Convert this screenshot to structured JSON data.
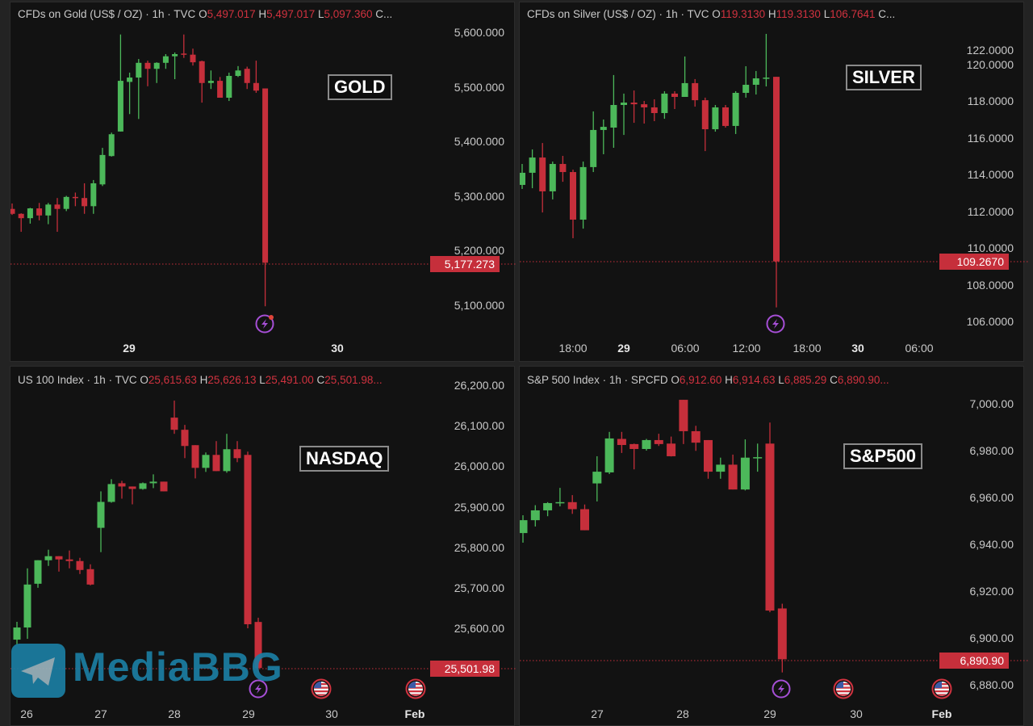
{
  "colors": {
    "up": "#4cb85a",
    "down": "#c62f3b",
    "background": "#121212",
    "text": "#c9c9c9",
    "event_icon": "#a64fd6",
    "watermark": "#1b7ea3"
  },
  "watermark": "MediaBBG",
  "chart_data": [
    {
      "type": "candlestick",
      "interval": "1h",
      "title": "CFDs on Gold (US$ / OZ) · 1h · TVC",
      "legend": {
        "O": "5,497.017",
        "H": "5,497.017",
        "L": "5,097.360",
        "C": "C..."
      },
      "annotation": "GOLD",
      "last_price": "5,177.273",
      "y_ticks": [
        "5,600.000",
        "5,500.000",
        "5,400.000",
        "5,300.000",
        "5,200.000",
        "5,100.000"
      ],
      "y_tick_values": [
        5600,
        5500,
        5400,
        5300,
        5200,
        5100
      ],
      "x_ticks": [
        "29",
        "30"
      ],
      "events": [
        "lightning"
      ],
      "ohlc": [
        [
          5276,
          5286,
          5265,
          5267
        ],
        [
          5267,
          5268,
          5234,
          5259
        ],
        [
          5259,
          5278,
          5249,
          5277
        ],
        [
          5277,
          5287,
          5255,
          5264
        ],
        [
          5264,
          5287,
          5248,
          5284
        ],
        [
          5284,
          5296,
          5234,
          5276
        ],
        [
          5276,
          5300,
          5272,
          5298
        ],
        [
          5298,
          5306,
          5281,
          5296
        ],
        [
          5296,
          5323,
          5267,
          5281
        ],
        [
          5281,
          5329,
          5267,
          5323
        ],
        [
          5321,
          5388,
          5318,
          5375
        ],
        [
          5373,
          5416,
          5372,
          5413
        ],
        [
          5418,
          5596,
          5418,
          5511
        ],
        [
          5509,
          5526,
          5450,
          5517
        ],
        [
          5517,
          5551,
          5441,
          5544
        ],
        [
          5544,
          5548,
          5501,
          5533
        ],
        [
          5533,
          5545,
          5507,
          5544
        ],
        [
          5544,
          5560,
          5533,
          5556
        ],
        [
          5556,
          5563,
          5514,
          5560
        ],
        [
          5561,
          5596,
          5553,
          5559
        ],
        [
          5559,
          5570,
          5539,
          5545
        ],
        [
          5547,
          5548,
          5471,
          5507
        ],
        [
          5507,
          5530,
          5496,
          5511
        ],
        [
          5511,
          5518,
          5480,
          5480
        ],
        [
          5480,
          5526,
          5474,
          5520
        ],
        [
          5520,
          5538,
          5518,
          5530
        ],
        [
          5533,
          5537,
          5496,
          5507
        ],
        [
          5507,
          5548,
          5489,
          5493
        ],
        [
          5497.017,
          5497.017,
          5097.36,
          5177.273
        ]
      ]
    },
    {
      "type": "candlestick",
      "interval": "1h",
      "title": "CFDs on Silver (US$ / OZ) · 1h · TVC",
      "legend": {
        "O": "119.3130",
        "H": "119.3130",
        "L": "106.7641",
        "C": "C..."
      },
      "annotation": "SILVER",
      "last_price": "109.2670",
      "y_ticks": [
        "122.0000",
        "120.0000",
        "118.0000",
        "116.0000",
        "114.0000",
        "112.0000",
        "110.0000",
        "108.0000",
        "106.0000"
      ],
      "y_tick_values": [
        122,
        120,
        118,
        116,
        114,
        112,
        110,
        108,
        106
      ],
      "x_ticks": [
        "18:00",
        "29",
        "06:00",
        "12:00",
        "18:00",
        "30",
        "06:00"
      ],
      "events": [
        "lightning"
      ],
      "ohlc": [
        [
          113.43,
          114.57,
          113.21,
          114.09
        ],
        [
          114.09,
          115.36,
          113.25,
          114.92
        ],
        [
          114.92,
          115.71,
          111.93,
          113.08
        ],
        [
          113.08,
          114.7,
          112.64,
          114.57
        ],
        [
          114.57,
          115.01,
          113.6,
          114.13
        ],
        [
          114.13,
          114.26,
          110.53,
          111.54
        ],
        [
          111.54,
          114.7,
          111.05,
          114.4
        ],
        [
          114.4,
          117.43,
          114.13,
          116.42
        ],
        [
          116.42,
          116.99,
          115.1,
          116.59
        ],
        [
          116.55,
          119.41,
          115.45,
          117.78
        ],
        [
          117.78,
          118.4,
          116.15,
          117.91
        ],
        [
          117.91,
          118.57,
          116.81,
          117.82
        ],
        [
          117.82,
          118.0,
          116.77,
          117.65
        ],
        [
          117.65,
          118.09,
          116.9,
          117.34
        ],
        [
          117.34,
          118.53,
          117.03,
          118.4
        ],
        [
          118.4,
          118.53,
          117.56,
          118.22
        ],
        [
          118.22,
          120.42,
          118.22,
          118.97
        ],
        [
          118.97,
          119.19,
          117.69,
          118.04
        ],
        [
          118.04,
          118.18,
          115.27,
          116.46
        ],
        [
          116.46,
          117.78,
          116.33,
          117.65
        ],
        [
          117.65,
          117.78,
          116.55,
          116.64
        ],
        [
          116.64,
          118.53,
          116.2,
          118.44
        ],
        [
          118.44,
          119.89,
          118.18,
          118.88
        ],
        [
          118.88,
          119.63,
          118.35,
          119.23
        ],
        [
          119.23,
          121.65,
          118.79,
          119.27
        ],
        [
          119.313,
          119.313,
          106.7641,
          109.267
        ]
      ]
    },
    {
      "type": "candlestick",
      "interval": "1h",
      "title": "US 100 Index · 1h · TVC",
      "legend": {
        "O": "25,615.63",
        "H": "25,626.13",
        "L": "25,491.00",
        "C": "25,501.98..."
      },
      "annotation": "NASDAQ",
      "last_price": "25,501.98",
      "y_ticks": [
        "26,200.00",
        "26,100.00",
        "26,000.00",
        "25,900.00",
        "25,800.00",
        "25,700.00",
        "25,600.00"
      ],
      "y_tick_values": [
        26200,
        26100,
        26000,
        25900,
        25800,
        25700,
        25600
      ],
      "x_ticks": [
        "26",
        "27",
        "28",
        "29",
        "30",
        "Feb"
      ],
      "events": [
        "lightning",
        "us-flag",
        "us-flag"
      ],
      "ohlc": [
        [
          25572,
          25616,
          25560,
          25602
        ],
        [
          25602,
          25748,
          25574,
          25708
        ],
        [
          25710,
          25768,
          25700,
          25768
        ],
        [
          25768,
          25794,
          25754,
          25778
        ],
        [
          25778,
          25778,
          25740,
          25770
        ],
        [
          25770,
          25792,
          25748,
          25766
        ],
        [
          25766,
          25774,
          25734,
          25744
        ],
        [
          25746,
          25758,
          25706,
          25708
        ],
        [
          25848,
          25938,
          25788,
          25912
        ],
        [
          25912,
          25968,
          25910,
          25956
        ],
        [
          25958,
          25964,
          25920,
          25950
        ],
        [
          25950,
          25950,
          25906,
          25944
        ],
        [
          25944,
          25960,
          25942,
          25958
        ],
        [
          25958,
          25980,
          25946,
          25962
        ],
        [
          25962,
          25962,
          25938,
          25938
        ],
        [
          26120,
          26162,
          26080,
          26090
        ],
        [
          26090,
          26102,
          26020,
          26050
        ],
        [
          26052,
          26052,
          25970,
          25996
        ],
        [
          25996,
          26034,
          25986,
          26028
        ],
        [
          26028,
          26062,
          25988,
          25988
        ],
        [
          25988,
          26080,
          25984,
          26042
        ],
        [
          26042,
          26062,
          26010,
          26020
        ],
        [
          26028,
          26036,
          25600,
          25610
        ],
        [
          25615.63,
          25626.13,
          25491.0,
          25501.98
        ]
      ]
    },
    {
      "type": "candlestick",
      "interval": "1h",
      "title": "S&P 500 Index · 1h · SPCFD",
      "legend": {
        "O": "6,912.60",
        "H": "6,914.63",
        "L": "6,885.29",
        "C": "6,890.90..."
      },
      "annotation": "S&P500",
      "last_price": "6,890.90",
      "y_ticks": [
        "7,000.00",
        "6,980.00",
        "6,960.00",
        "6,940.00",
        "6,920.00",
        "6,900.00",
        "6,880.00"
      ],
      "y_tick_values": [
        7000,
        6980,
        6960,
        6940,
        6920,
        6900,
        6880
      ],
      "x_ticks": [
        "27",
        "28",
        "29",
        "30",
        "Feb"
      ],
      "events": [
        "lightning",
        "us-flag",
        "us-flag"
      ],
      "ohlc": [
        [
          6944.8,
          6952.4,
          6940.7,
          6950.3
        ],
        [
          6950.3,
          6956.7,
          6947.6,
          6954.5
        ],
        [
          6954.5,
          6958,
          6952,
          6957.6
        ],
        [
          6957.6,
          6964.1,
          6956.2,
          6958.0
        ],
        [
          6958,
          6961,
          6953,
          6955
        ],
        [
          6955,
          6957,
          6946,
          6946
        ],
        [
          6966,
          6977.6,
          6958.3,
          6971
        ],
        [
          6970.7,
          6988,
          6970,
          6985.2
        ],
        [
          6985,
          6988,
          6979,
          6982.4
        ],
        [
          6982.8,
          6983,
          6972,
          6980.7
        ],
        [
          6980.7,
          6985,
          6980,
          6984.5
        ],
        [
          6984.5,
          6987.2,
          6982,
          6982.8
        ],
        [
          6983,
          6986,
          6977.5,
          6977.6
        ],
        [
          7001.7,
          7001.7,
          6982.8,
          6988.3
        ],
        [
          6988.3,
          6990.6,
          6979.9,
          6983.4
        ],
        [
          6984.5,
          6984.5,
          6968,
          6971
        ],
        [
          6971,
          6977,
          6968,
          6974
        ],
        [
          6974,
          6978.3,
          6963.4,
          6963.4
        ],
        [
          6963.4,
          6984.8,
          6963,
          6977
        ],
        [
          6976.9,
          6983,
          6971,
          6977.2
        ],
        [
          6983,
          6992,
          6911,
          6911.7
        ],
        [
          6912.6,
          6914.63,
          6885.29,
          6890.9
        ]
      ]
    }
  ]
}
